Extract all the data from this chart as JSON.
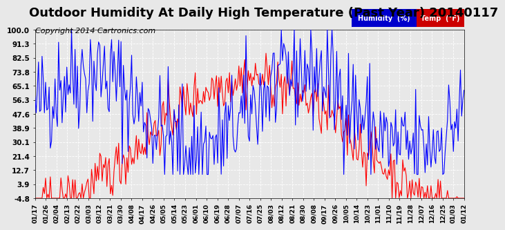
{
  "title": "Outdoor Humidity At Daily High Temperature (Past Year) 20140117",
  "copyright": "Copyright 2014 Cartronics.com",
  "yticks": [
    100.0,
    91.3,
    82.5,
    73.8,
    65.1,
    56.3,
    47.6,
    38.9,
    30.1,
    21.4,
    12.7,
    3.9,
    -4.8
  ],
  "ylim": [
    -4.8,
    100.0
  ],
  "xtick_labels": [
    "01/17",
    "01/26",
    "02/04",
    "02/13",
    "02/22",
    "03/03",
    "03/12",
    "03/21",
    "03/30",
    "04/08",
    "04/17",
    "04/26",
    "05/05",
    "05/14",
    "05/23",
    "06/01",
    "06/10",
    "06/19",
    "06/28",
    "07/07",
    "07/16",
    "07/25",
    "08/03",
    "08/12",
    "08/21",
    "08/30",
    "09/08",
    "09/17",
    "09/26",
    "10/05",
    "10/14",
    "10/23",
    "11/01",
    "11/10",
    "11/19",
    "11/28",
    "12/07",
    "12/16",
    "12/25",
    "01/03",
    "01/12"
  ],
  "humidity_color": "#0000ff",
  "temp_color": "#ff0000",
  "background_color": "#e8e8e8",
  "plot_bg_color": "#e8e8e8",
  "grid_color": "#ffffff",
  "title_fontsize": 13,
  "copyright_fontsize": 8,
  "legend_humidity_bg": "#0000cc",
  "legend_temp_bg": "#cc0000",
  "legend_text_color": "#ffffff"
}
